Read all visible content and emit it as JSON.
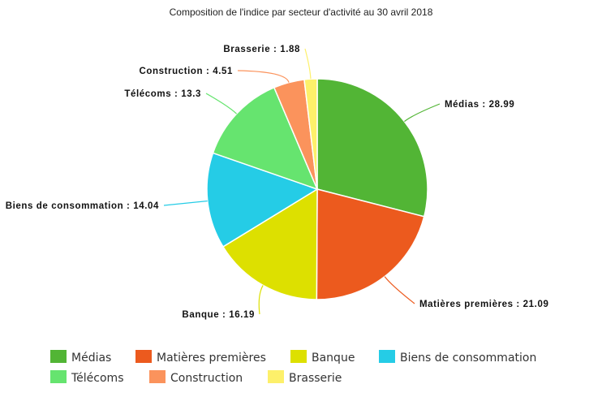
{
  "chart_data": {
    "type": "pie",
    "title": "Composition de l'indice par secteur d'activité au 30 avril 2018",
    "label_separator": " : ",
    "start": "top",
    "direction": "clockwise",
    "legend_placement": "bottom",
    "slices": [
      {
        "label": "Médias",
        "value": 28.99,
        "color": "#52b535"
      },
      {
        "label": "Matières premières",
        "value": 21.09,
        "color": "#ec5a1e"
      },
      {
        "label": "Banque",
        "value": 16.19,
        "color": "#dde000"
      },
      {
        "label": "Biens de consommation",
        "value": 14.04,
        "color": "#25cce6"
      },
      {
        "label": "Télécoms",
        "value": 13.3,
        "color": "#66e46f"
      },
      {
        "label": "Construction",
        "value": 4.51,
        "color": "#fb935c"
      },
      {
        "label": "Brasserie",
        "value": 1.88,
        "color": "#fdf06a"
      }
    ]
  }
}
